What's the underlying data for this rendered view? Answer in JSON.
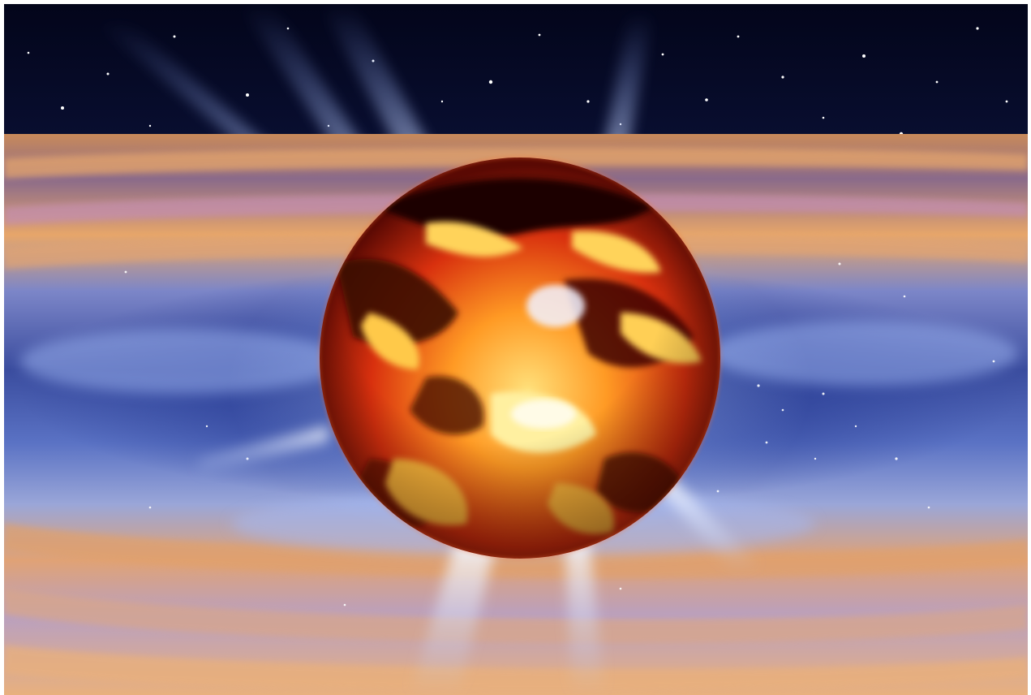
{
  "image": {
    "subject": "neutron-star-illustration",
    "colors": {
      "space_dark": "#04071c",
      "space_mid": "#15205a",
      "disk_blue": "#6d86d6",
      "disk_orange": "#e6a064",
      "disk_pink": "#d9a0bf",
      "beam": "#cfe3ff",
      "star_hot": "#ffe37a",
      "star_orange": "#ff8a1a",
      "star_red": "#c51a0a",
      "star_dark": "#2a0502"
    }
  }
}
